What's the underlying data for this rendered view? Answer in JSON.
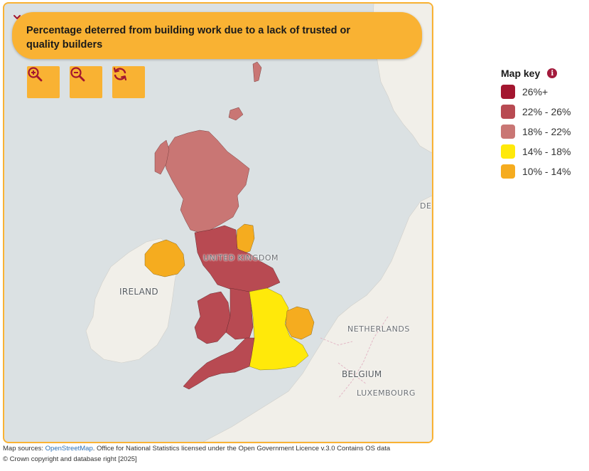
{
  "dropdown": {
    "title": "Percentage deterred from building work due to a lack of trusted or quality builders"
  },
  "controls": {
    "zoom_in": "zoom-in-icon",
    "zoom_out": "zoom-out-icon",
    "reset": "reset-icon"
  },
  "map_labels": {
    "uk": "UNITED KINGDOM",
    "ireland": "IRELAND",
    "netherlands": "NETHERLANDS",
    "belgium": "BELGIUM",
    "luxembourg": "LUXEMBOURG",
    "de": "DE"
  },
  "legend": {
    "title": "Map key",
    "items": [
      {
        "label": "26%+",
        "color": "#a3162f"
      },
      {
        "label": "22% - 26%",
        "color": "#b84a52"
      },
      {
        "label": "18% - 22%",
        "color": "#c97674"
      },
      {
        "label": "14% - 18%",
        "color": "#ffe90a"
      },
      {
        "label": "10% - 14%",
        "color": "#f5ac1f"
      }
    ]
  },
  "sources": {
    "prefix": "Map sources: ",
    "osm_link": "OpenStreetMap",
    "rest": ". Office for National Statistics licensed under the Open Government Licence v.3.0 Contains OS data",
    "line2": "© Crown copyright and database right [2025]"
  },
  "colors": {
    "accent": "#f9b233",
    "sea": "#dbe1e3",
    "land": "#f1efe9"
  }
}
